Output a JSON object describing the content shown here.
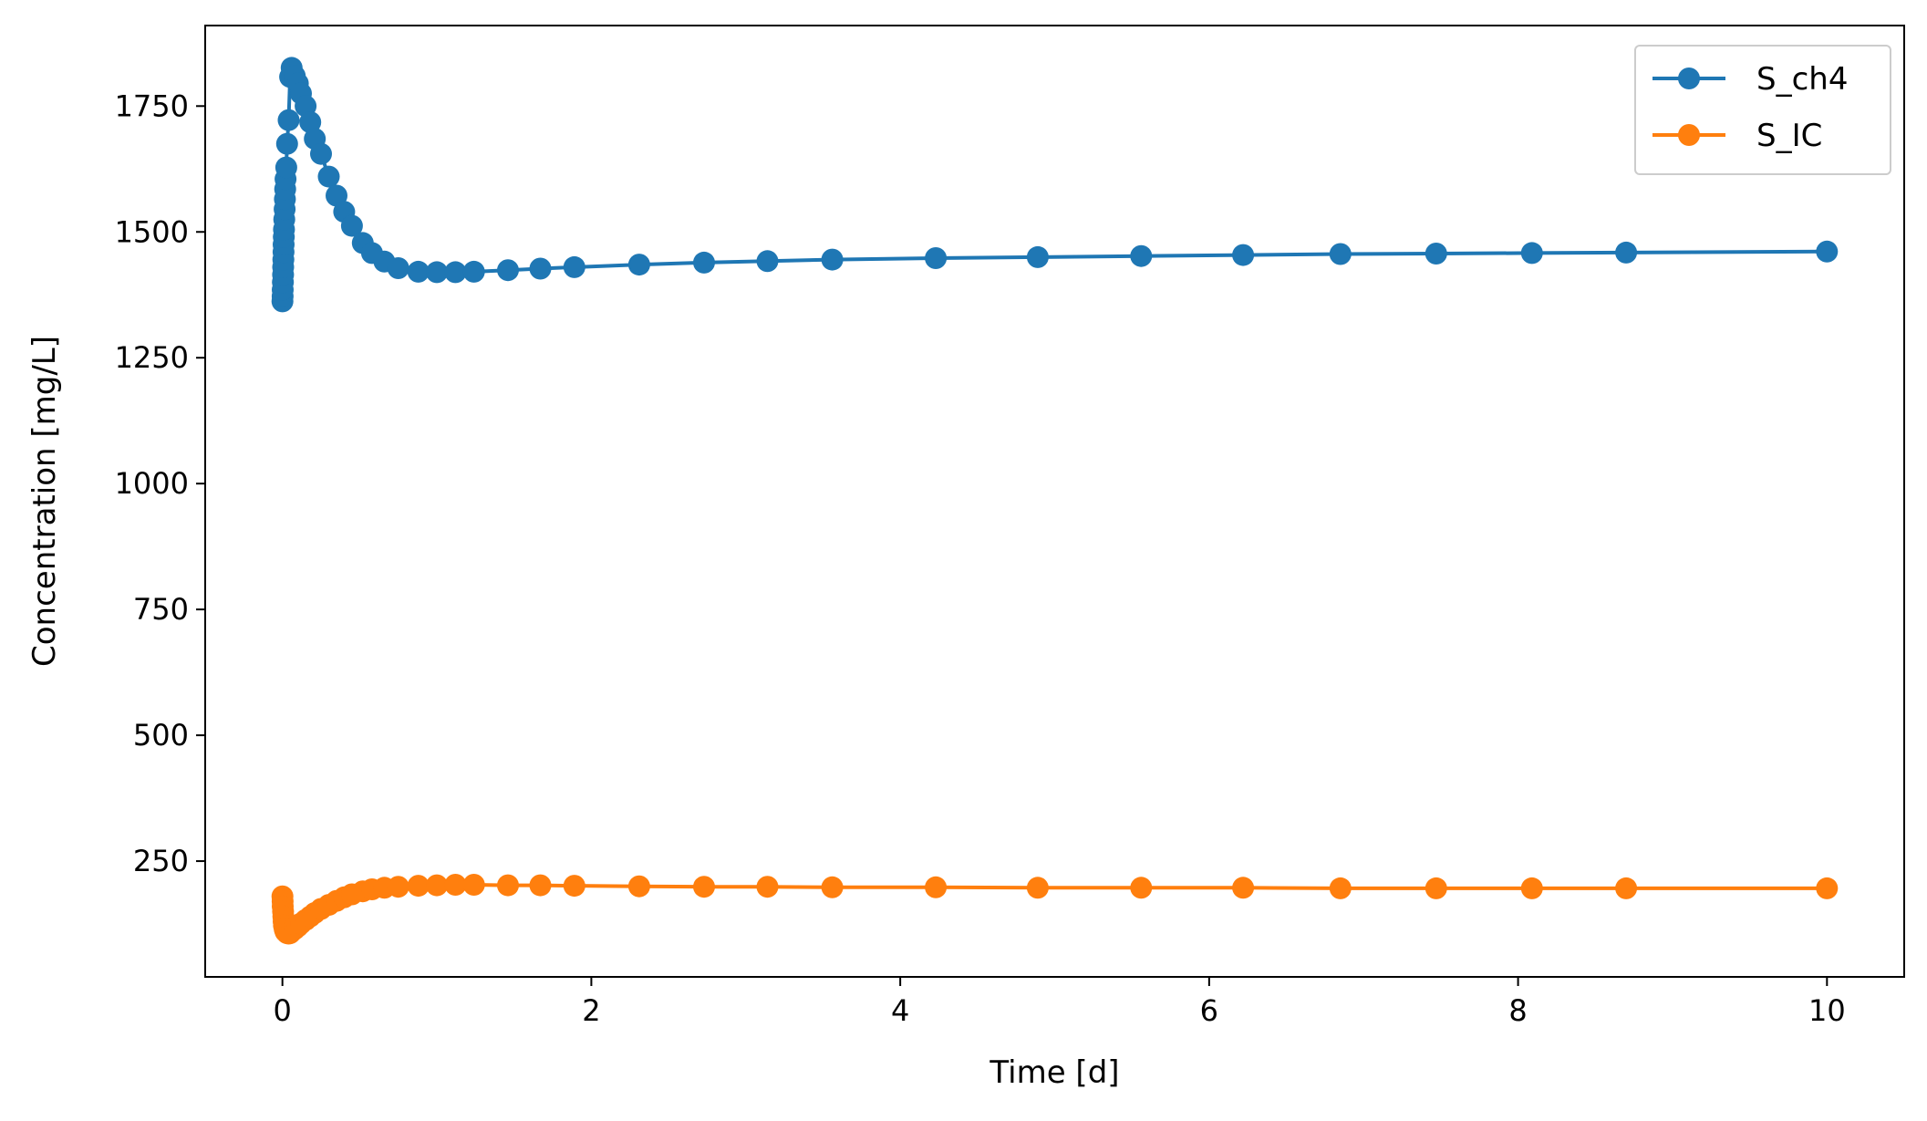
{
  "chart_data": {
    "type": "line",
    "title": "",
    "xlabel": "Time [d]",
    "ylabel": "Concentration [mg/L]",
    "xlim": [
      -0.5,
      10.5
    ],
    "ylim": [
      20,
      1910
    ],
    "xticks": [
      0,
      2,
      4,
      6,
      8,
      10
    ],
    "xtick_labels": [
      "0",
      "2",
      "4",
      "6",
      "8",
      "10"
    ],
    "yticks": [
      250,
      500,
      750,
      1000,
      1250,
      1500,
      1750
    ],
    "ytick_labels": [
      "250",
      "500",
      "750",
      "1000",
      "1250",
      "1500",
      "1750"
    ],
    "grid": false,
    "legend_position": "top-right",
    "series": [
      {
        "name": "S_ch4",
        "color": "#1f77b4",
        "marker": "circle",
        "x": [
          0.0,
          0.001,
          0.002,
          0.003,
          0.004,
          0.005,
          0.006,
          0.007,
          0.008,
          0.009,
          0.01,
          0.012,
          0.014,
          0.016,
          0.018,
          0.02,
          0.025,
          0.03,
          0.04,
          0.05,
          0.06,
          0.08,
          0.1,
          0.12,
          0.15,
          0.18,
          0.21,
          0.25,
          0.3,
          0.35,
          0.4,
          0.45,
          0.52,
          0.58,
          0.66,
          0.75,
          0.88,
          1.0,
          1.12,
          1.24,
          1.46,
          1.67,
          1.89,
          2.31,
          2.73,
          3.14,
          3.56,
          4.23,
          4.89,
          5.56,
          6.22,
          6.85,
          7.47,
          8.09,
          8.7,
          10.0
        ],
        "y": [
          1362,
          1372,
          1385,
          1400,
          1415,
          1430,
          1445,
          1460,
          1475,
          1490,
          1505,
          1525,
          1545,
          1565,
          1585,
          1605,
          1628,
          1675,
          1722,
          1808,
          1826,
          1810,
          1795,
          1775,
          1750,
          1718,
          1685,
          1655,
          1610,
          1572,
          1540,
          1512,
          1478,
          1458,
          1441,
          1428,
          1421,
          1420,
          1420,
          1421,
          1424,
          1427,
          1430,
          1435,
          1439,
          1442,
          1445,
          1448,
          1450,
          1452,
          1454,
          1456,
          1457,
          1458,
          1459,
          1461
        ]
      },
      {
        "name": "S_IC",
        "color": "#ff7f0e",
        "marker": "circle",
        "x": [
          0.0,
          0.001,
          0.002,
          0.004,
          0.006,
          0.008,
          0.01,
          0.015,
          0.02,
          0.03,
          0.04,
          0.05,
          0.06,
          0.08,
          0.1,
          0.12,
          0.15,
          0.18,
          0.21,
          0.25,
          0.3,
          0.35,
          0.4,
          0.45,
          0.52,
          0.58,
          0.66,
          0.75,
          0.88,
          1.0,
          1.12,
          1.24,
          1.46,
          1.67,
          1.89,
          2.31,
          2.73,
          3.14,
          3.56,
          4.23,
          4.89,
          5.56,
          6.22,
          6.85,
          7.47,
          8.09,
          8.7,
          10.0
        ],
        "y": [
          180,
          170,
          160,
          150,
          140,
          130,
          122,
          115,
          110,
          107,
          106,
          107,
          110,
          115,
          120,
          126,
          133,
          140,
          147,
          155,
          163,
          171,
          178,
          184,
          190,
          194,
          197,
          199,
          201,
          202,
          203,
          203,
          202,
          202,
          201,
          200,
          199,
          199,
          198,
          198,
          197,
          197,
          197,
          196,
          196,
          196,
          196,
          196
        ]
      }
    ]
  }
}
